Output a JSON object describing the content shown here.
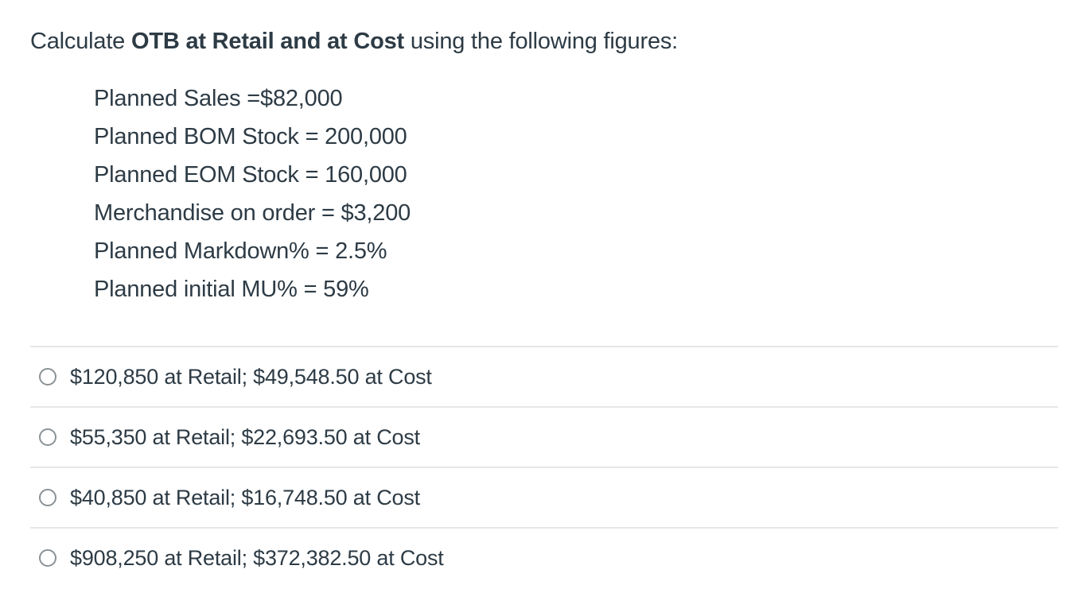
{
  "question": {
    "prompt_pre": "Calculate ",
    "prompt_bold": "OTB at Retail and at Cost",
    "prompt_post": " using the following figures:",
    "figures": [
      "Planned Sales =$82,000",
      "Planned BOM Stock = 200,000",
      "Planned EOM Stock = 160,000",
      "Merchandise on order = $3,200",
      "Planned Markdown% = 2.5%",
      "Planned initial MU% = 59%"
    ]
  },
  "answers": [
    {
      "label": "$120,850 at Retail; $49,548.50 at Cost",
      "selected": false
    },
    {
      "label": "$55,350 at Retail; $22,693.50 at Cost",
      "selected": false
    },
    {
      "label": "$40,850 at Retail; $16,748.50 at Cost",
      "selected": false
    },
    {
      "label": "$908,250 at Retail; $372,382.50 at Cost",
      "selected": false
    }
  ]
}
